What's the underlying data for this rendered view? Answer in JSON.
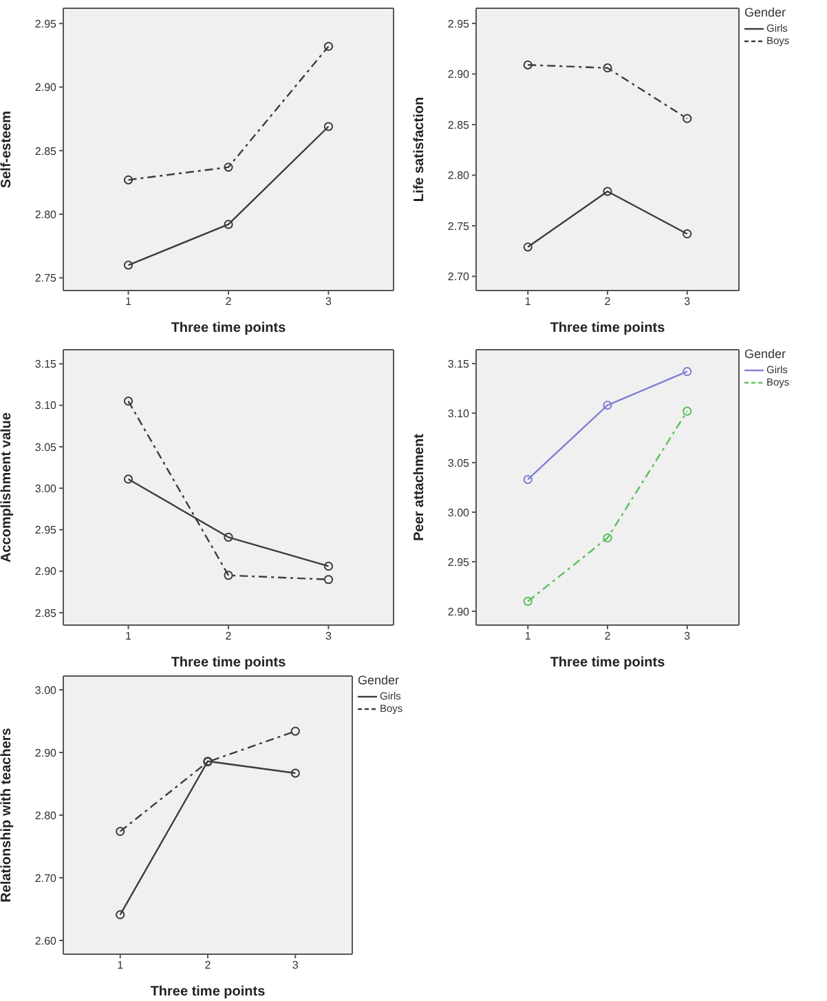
{
  "chart_data": [
    {
      "type": "line",
      "xlabel": "Three time points",
      "ylabel": "Self-esteem",
      "x": [
        1,
        2,
        3
      ],
      "xlim": [
        0.35,
        3.65
      ],
      "xticks": [
        1,
        2,
        3
      ],
      "ylim": [
        2.74,
        2.962
      ],
      "yticks": [
        2.75,
        {
          "value": 2.8,
          "label": "2.80"
        },
        2.85,
        {
          "value": 2.9,
          "label": "2.90"
        },
        2.95
      ],
      "marker": "circle",
      "grid": false,
      "legend": false,
      "series": [
        {
          "color": "#3c3c3c",
          "values": [
            2.76,
            2.792,
            2.869
          ],
          "line_style": "solid"
        },
        {
          "color": "#3c3c3c",
          "values": [
            2.827,
            2.837,
            2.932
          ],
          "line_style": "dashed"
        }
      ]
    },
    {
      "type": "line",
      "xlabel": "Three time points",
      "ylabel": "Life satisfaction",
      "x": [
        1,
        2,
        3
      ],
      "xlim": [
        0.35,
        3.65
      ],
      "xticks": [
        1,
        2,
        3
      ],
      "ylim": [
        2.686,
        2.965
      ],
      "yticks": [
        {
          "value": 2.7,
          "label": "2.70"
        },
        2.75,
        {
          "value": 2.8,
          "label": "2.80"
        },
        2.85,
        {
          "value": 2.9,
          "label": "2.90"
        },
        2.95
      ],
      "marker": "circle",
      "grid": false,
      "legend": "top right",
      "legend_title": "Gender",
      "series": [
        {
          "name": "Girls",
          "color": "#3c3c3c",
          "values": [
            2.729,
            2.784,
            2.742
          ],
          "line_style": "solid"
        },
        {
          "name": "Boys",
          "color": "#3c3c3c",
          "values": [
            2.909,
            2.906,
            2.856
          ],
          "line_style": "dashed"
        }
      ]
    },
    {
      "type": "line",
      "xlabel": "Three time points",
      "ylabel": "Accomplishment value",
      "x": [
        1,
        2,
        3
      ],
      "xlim": [
        0.35,
        3.65
      ],
      "xticks": [
        1,
        2,
        3
      ],
      "ylim": [
        2.835,
        3.167
      ],
      "yticks": [
        2.85,
        {
          "value": 2.9,
          "label": "2.90"
        },
        2.95,
        {
          "value": 3.0,
          "label": "3.00"
        },
        3.05,
        {
          "value": 3.1,
          "label": "3.10"
        },
        3.15
      ],
      "marker": "circle",
      "grid": false,
      "legend": false,
      "series": [
        {
          "color": "#3c3c3c",
          "values": [
            3.011,
            2.941,
            2.906
          ],
          "line_style": "solid"
        },
        {
          "color": "#3c3c3c",
          "values": [
            3.105,
            2.895,
            2.89
          ],
          "line_style": "dashed"
        }
      ]
    },
    {
      "type": "line",
      "xlabel": "Three time points",
      "ylabel": "Peer attachment",
      "x": [
        1,
        2,
        3
      ],
      "xlim": [
        0.35,
        3.65
      ],
      "xticks": [
        1,
        2,
        3
      ],
      "ylim": [
        2.886,
        3.164
      ],
      "yticks": [
        {
          "value": 2.9,
          "label": "2.90"
        },
        2.95,
        {
          "value": 3.0,
          "label": "3.00"
        },
        3.05,
        {
          "value": 3.1,
          "label": "3.10"
        },
        3.15
      ],
      "marker": "circle",
      "grid": false,
      "legend": "top right",
      "legend_title": "Gender",
      "series": [
        {
          "name": "Girls",
          "color": "#7f7fd5",
          "values": [
            3.033,
            3.108,
            3.142
          ],
          "line_style": "solid"
        },
        {
          "name": "Boys",
          "color": "#5cbf5c",
          "values": [
            2.91,
            2.974,
            3.102
          ],
          "line_style": "dashed"
        }
      ]
    },
    {
      "type": "line",
      "xlabel": "Three time points",
      "ylabel": "Relationship with teachers",
      "x": [
        1,
        2,
        3
      ],
      "xlim": [
        0.35,
        3.65
      ],
      "xticks": [
        1,
        2,
        3
      ],
      "ylim": [
        2.578,
        3.022
      ],
      "yticks": [
        {
          "value": 2.6,
          "label": "2.60"
        },
        {
          "value": 2.7,
          "label": "2.70"
        },
        {
          "value": 2.8,
          "label": "2.80"
        },
        {
          "value": 2.9,
          "label": "2.90"
        },
        {
          "value": 3.0,
          "label": "3.00"
        }
      ],
      "marker": "circle",
      "grid": false,
      "legend": "top right",
      "legend_title": "Gender",
      "series": [
        {
          "name": "Girls",
          "color": "#3c3c3c",
          "values": [
            2.641,
            2.886,
            2.867
          ],
          "line_style": "solid"
        },
        {
          "name": "Boys",
          "color": "#3c3c3c",
          "values": [
            2.774,
            2.885,
            2.934
          ],
          "line_style": "dashed"
        }
      ]
    }
  ]
}
